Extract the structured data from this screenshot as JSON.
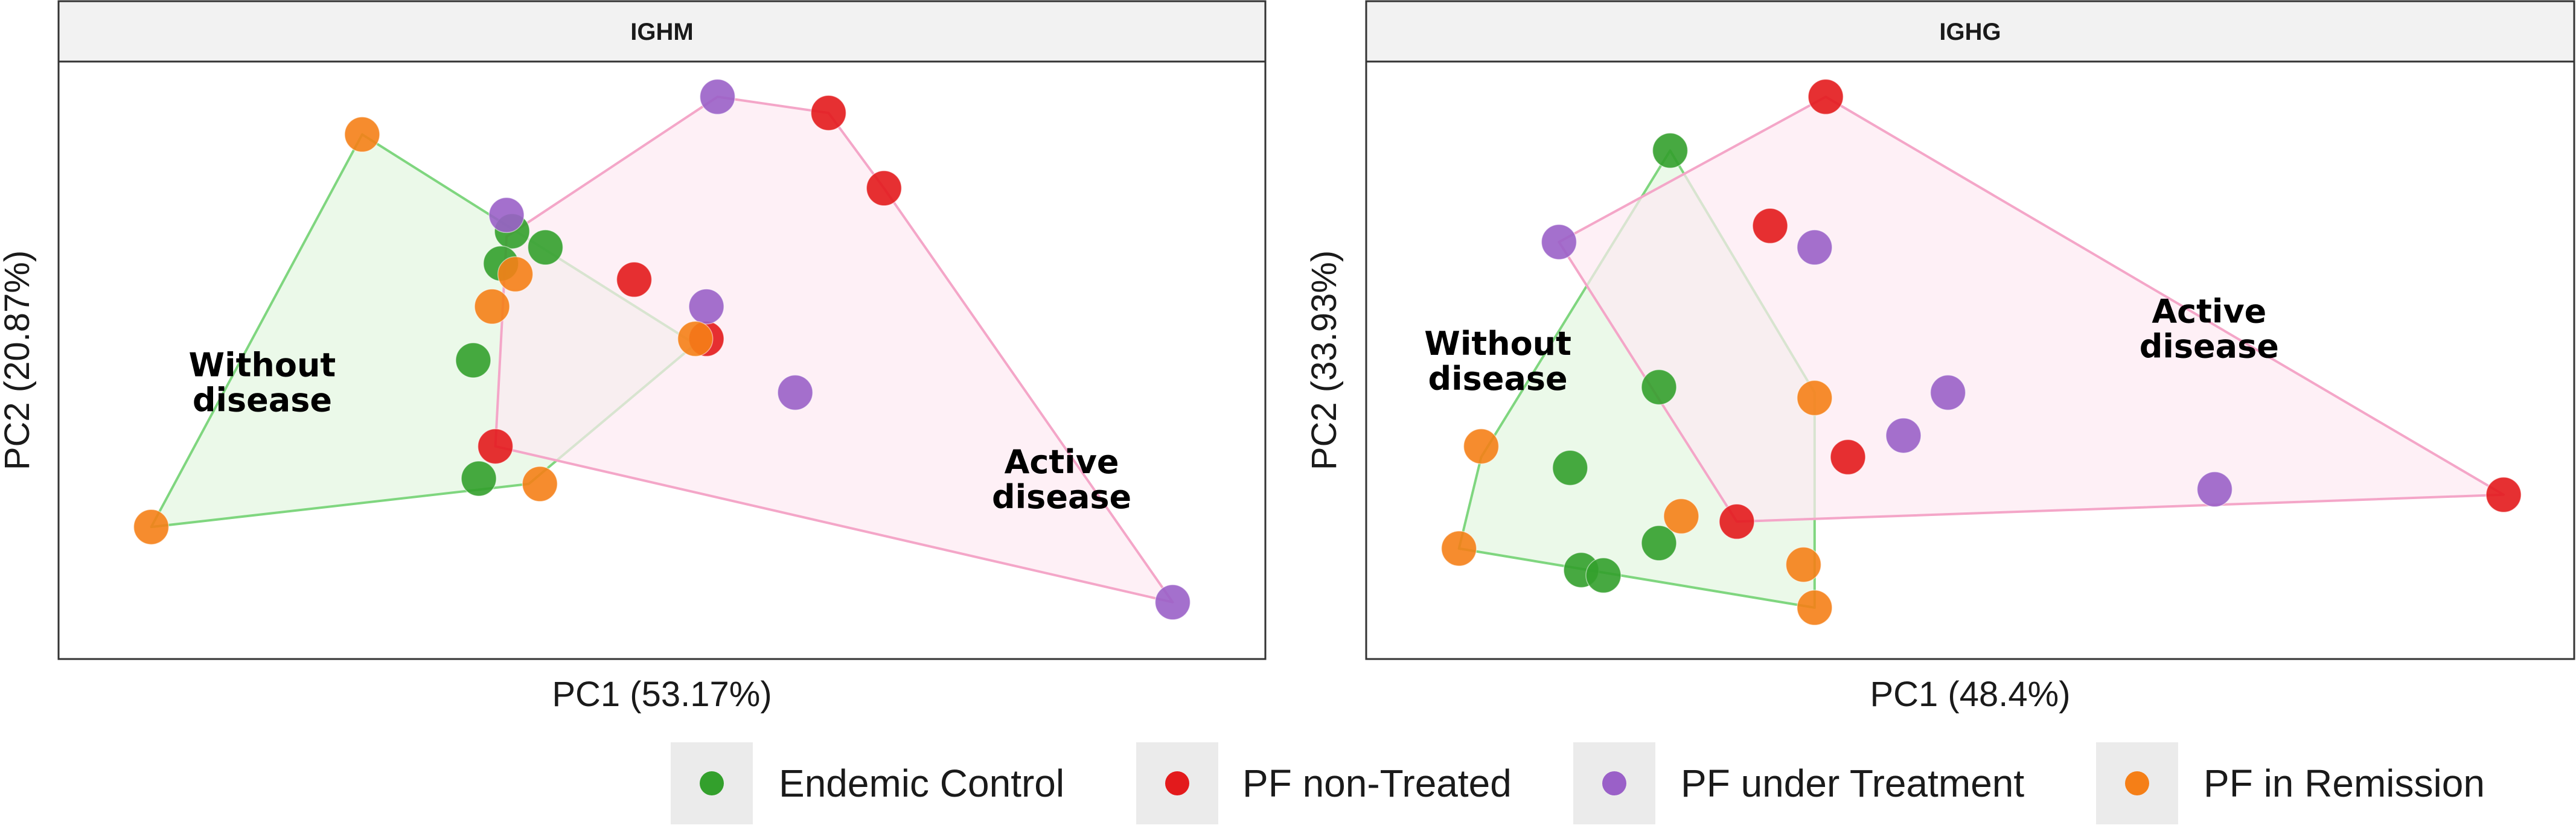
{
  "chart_data": [
    {
      "type": "scatter",
      "title": "IGHM",
      "xlabel": "PC1 (53.17%)",
      "ylabel": "PC2 (20.87%)",
      "xlim": [
        0,
        100
      ],
      "ylim": [
        0,
        100
      ],
      "annotations": [
        {
          "lines": [
            "Without",
            "disease"
          ],
          "x": 14,
          "y": 47
        },
        {
          "lines": [
            "Active",
            "disease"
          ],
          "x": 86,
          "y": 29
        }
      ],
      "hulls": [
        {
          "name": "Without disease",
          "color": "#7fd67f",
          "fill": "#e3f7e0",
          "vertices": [
            [
              23,
              92
            ],
            [
              53,
              53
            ],
            [
              38,
              27
            ],
            [
              4,
              19
            ]
          ]
        },
        {
          "name": "Active disease",
          "color": "#f4a6c8",
          "fill": "#fde9f2",
          "vertices": [
            [
              55,
              99
            ],
            [
              65,
              96
            ],
            [
              70,
              82
            ],
            [
              96,
              5
            ],
            [
              35,
              34
            ],
            [
              36,
              73
            ]
          ]
        }
      ],
      "series": [
        {
          "name": "Endemic Control",
          "color": "#33a02c",
          "points": [
            [
              36.5,
              74
            ],
            [
              39.5,
              71
            ],
            [
              35.5,
              68
            ],
            [
              33,
              50
            ],
            [
              33.5,
              28
            ]
          ]
        },
        {
          "name": "PF non-Treated",
          "color": "#e31a1c",
          "points": [
            [
              65,
              96
            ],
            [
              70,
              82
            ],
            [
              47.5,
              65
            ],
            [
              54,
              54
            ],
            [
              35,
              34
            ]
          ]
        },
        {
          "name": "PF under Treatment",
          "color": "#9a60c8",
          "points": [
            [
              55,
              99
            ],
            [
              36,
              77
            ],
            [
              54,
              60
            ],
            [
              62,
              44
            ],
            [
              96,
              5
            ]
          ]
        },
        {
          "name": "PF in Remission",
          "color": "#f57f17",
          "points": [
            [
              23,
              92
            ],
            [
              36.8,
              66
            ],
            [
              34.7,
              60
            ],
            [
              53,
              54
            ],
            [
              39,
              27
            ],
            [
              4,
              19
            ]
          ]
        }
      ]
    },
    {
      "type": "scatter",
      "title": "IGHG",
      "xlabel": "PC1 (48.4%)",
      "ylabel": "PC2 (33.93%)",
      "xlim": [
        0,
        100
      ],
      "ylim": [
        0,
        100
      ],
      "annotations": [
        {
          "lines": [
            "Without",
            "disease"
          ],
          "x": 7.5,
          "y": 51
        },
        {
          "lines": [
            "Active",
            "disease"
          ],
          "x": 71.5,
          "y": 57
        }
      ],
      "hulls": [
        {
          "name": "Without disease",
          "color": "#7fd67f",
          "fill": "#e3f7e0",
          "vertices": [
            [
              23,
              89
            ],
            [
              36,
              44
            ],
            [
              36,
              4
            ],
            [
              4,
              15
            ],
            [
              6,
              32
            ]
          ]
        },
        {
          "name": "Active disease",
          "color": "#f4a6c8",
          "fill": "#fde9f2",
          "vertices": [
            [
              37,
              99
            ],
            [
              98,
              25
            ],
            [
              29,
              20
            ],
            [
              13,
              72
            ]
          ]
        }
      ],
      "series": [
        {
          "name": "Endemic Control",
          "color": "#33a02c",
          "points": [
            [
              23,
              89
            ],
            [
              22,
              45
            ],
            [
              14,
              30
            ],
            [
              22,
              16
            ],
            [
              15,
              11
            ],
            [
              17,
              10
            ]
          ]
        },
        {
          "name": "PF non-Treated",
          "color": "#e31a1c",
          "points": [
            [
              37,
              99
            ],
            [
              32,
              75
            ],
            [
              39,
              32
            ],
            [
              98,
              25
            ],
            [
              29,
              20
            ]
          ]
        },
        {
          "name": "PF under Treatment",
          "color": "#9a60c8",
          "points": [
            [
              13,
              72
            ],
            [
              36,
              71
            ],
            [
              48,
              44
            ],
            [
              44,
              36
            ],
            [
              72,
              26
            ]
          ]
        },
        {
          "name": "PF in Remission",
          "color": "#f57f17",
          "points": [
            [
              36,
              43
            ],
            [
              6,
              34
            ],
            [
              24,
              21
            ],
            [
              4,
              15
            ],
            [
              35,
              12
            ],
            [
              36,
              4
            ]
          ]
        }
      ]
    }
  ],
  "legend": {
    "position": "bottom",
    "items": [
      {
        "label": "Endemic Control",
        "color": "#33a02c"
      },
      {
        "label": "PF non-Treated",
        "color": "#e31a1c"
      },
      {
        "label": "PF under Treatment",
        "color": "#9a60c8"
      },
      {
        "label": "PF in Remission",
        "color": "#f57f17"
      }
    ]
  }
}
